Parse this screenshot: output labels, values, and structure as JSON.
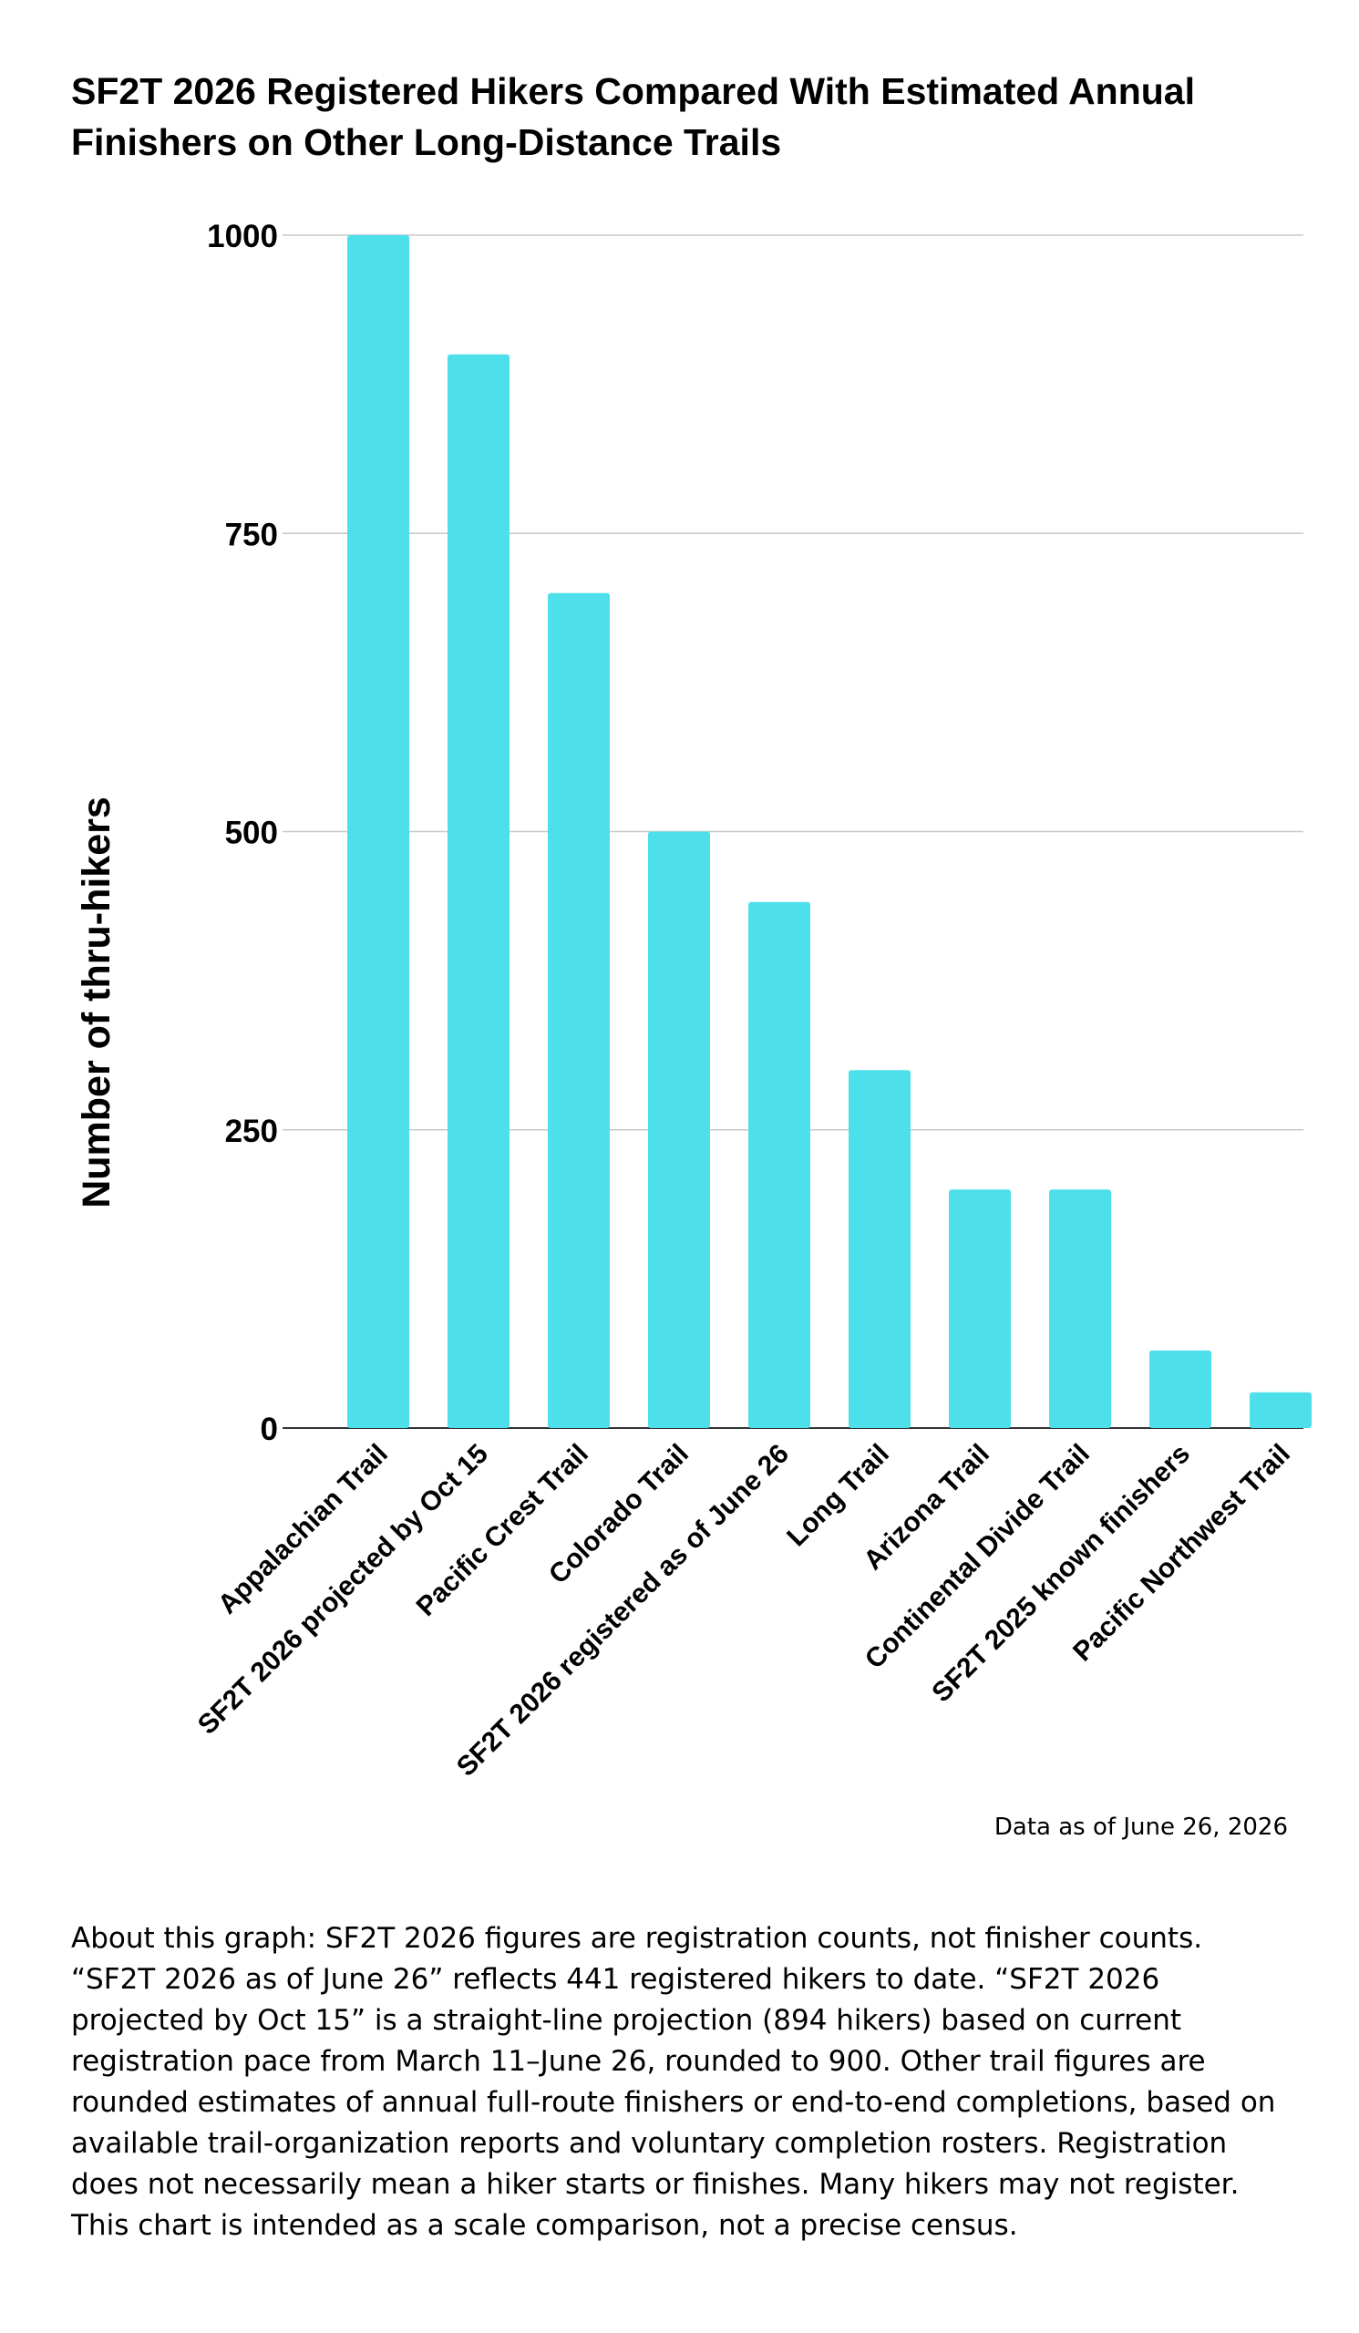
{
  "chart_data": {
    "type": "bar",
    "title": "SF2T 2026 Registered Hikers Compared With Estimated Annual Finishers on Other Long-Distance Trails",
    "ylabel": "Number of thru-hikers",
    "xlabel": "",
    "ylim": [
      0,
      1000
    ],
    "yticks": [
      0,
      250,
      500,
      750,
      1000
    ],
    "grid": true,
    "bar_color": "#4ee0ea",
    "categories": [
      "Appalachian Trail",
      "SF2T 2026 projected by Oct 15",
      "Pacific Crest Trail",
      "Colorado Trail",
      "SF2T 2026 registered as of June 26",
      "Long Trail",
      "Arizona Trail",
      "Continental Divide Trail",
      "SF2T 2025 known finishers",
      "Pacific Northwest Trail"
    ],
    "values": [
      1000,
      900,
      700,
      500,
      441,
      300,
      200,
      200,
      65,
      30
    ]
  },
  "note": "Data as of June 26, 2026",
  "about": "About this graph: SF2T 2026 figures are registration counts, not finisher counts. “SF2T 2026 as of June 26” reflects 441 registered hikers to date. “SF2T 2026 projected by Oct 15” is a straight-line projection (894 hikers) based on current registration pace from March 11–June 26, rounded to 900. Other trail figures are rounded estimates of annual full-route finishers or end-to-end completions, based on available trail-organization reports and voluntary completion rosters. Registration does not necessarily mean a hiker starts or finishes. Many hikers may not register. This chart is intended as a scale comparison, not a precise census."
}
